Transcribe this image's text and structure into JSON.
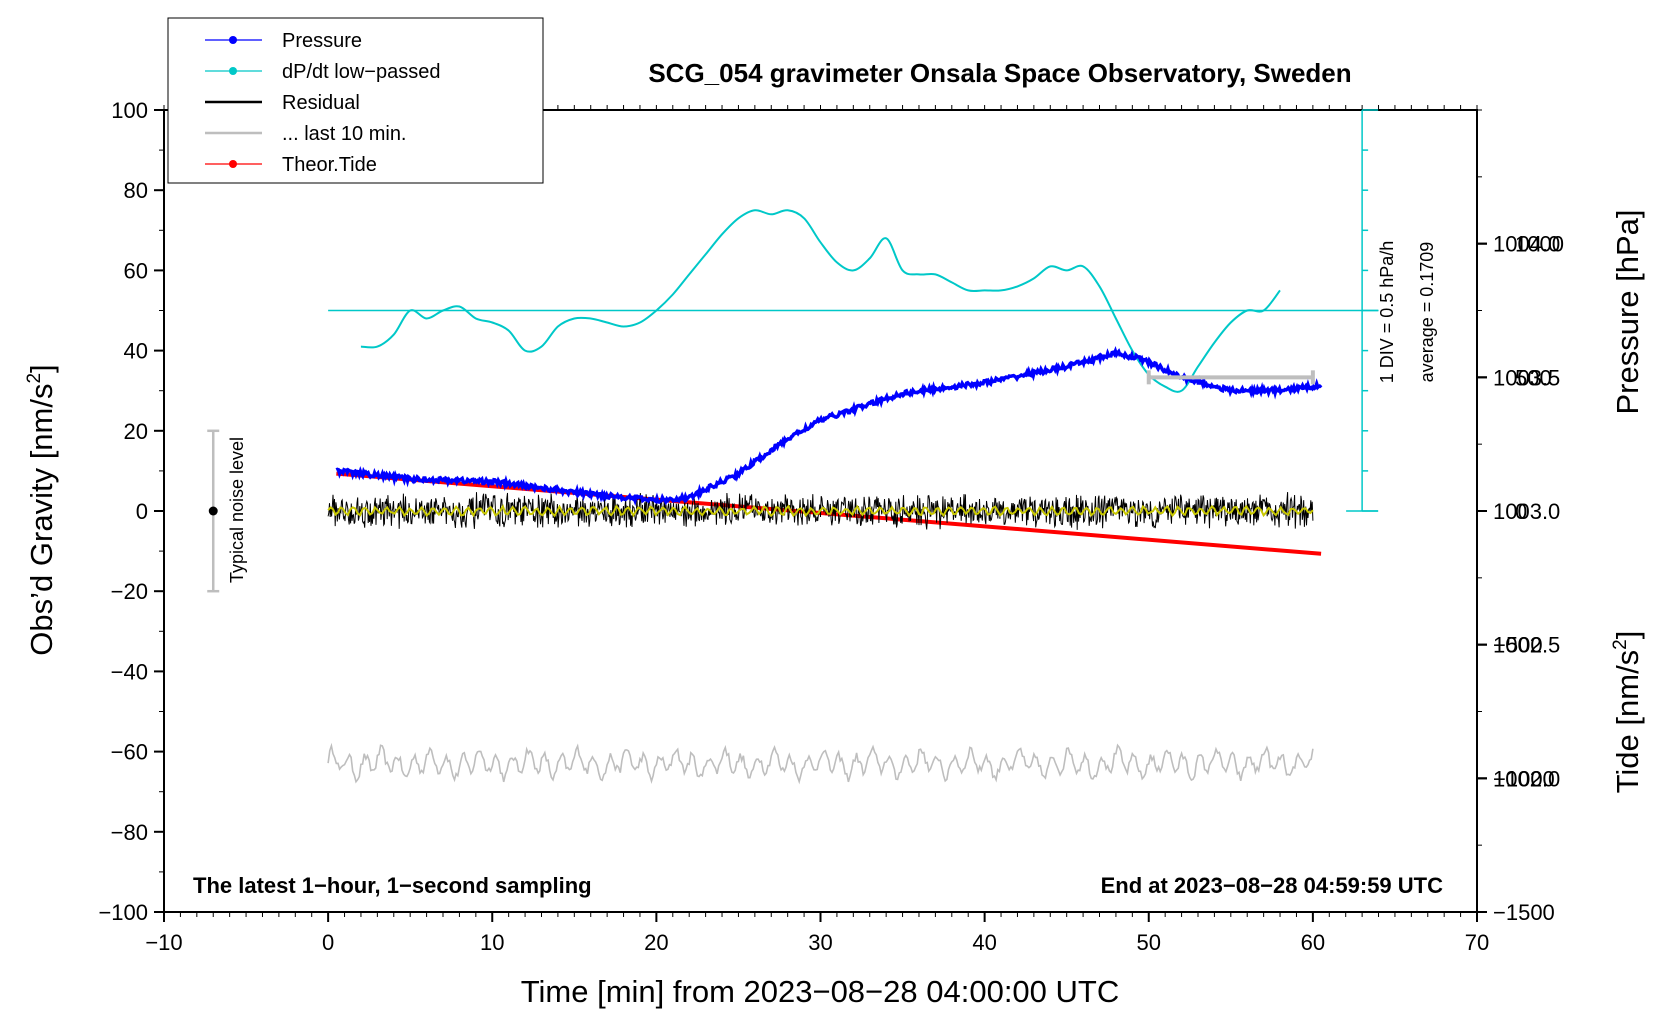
{
  "chart_data": {
    "type": "line",
    "title": "SCG_054 gravimeter Onsala Space Observatory, Sweden",
    "xlabel": "Time [min] from 2023−08−28 04:00:00 UTC",
    "ylabel_left_main": "Obs’d Gravity [nm/s",
    "ylabel_left_sup": "2",
    "ylabel_left_end": "]",
    "ylabel_right_pressure": "Pressure [hPa]",
    "ylabel_right_tide_main": "Tide [nm/s",
    "ylabel_right_tide_sup": "2",
    "ylabel_right_tide_end": "]",
    "xlim": [
      -10,
      70
    ],
    "ylim": [
      -100,
      100
    ],
    "pressure_range": [
      1001.5,
      1004.5
    ],
    "tide_range": [
      -1500,
      1500
    ],
    "x_ticks": [
      "−10",
      "0",
      "10",
      "20",
      "30",
      "40",
      "50",
      "60",
      "70"
    ],
    "y_ticks": [
      "−100",
      "−80",
      "−60",
      "−40",
      "−20",
      "0",
      "20",
      "40",
      "60",
      "80",
      "100"
    ],
    "pressure_ticks": [
      "1002.0",
      "1002.5",
      "1003.0",
      "1003.5",
      "1004.0"
    ],
    "tide_ticks": [
      "−1500",
      "−1000",
      "−500",
      "0",
      "500",
      "1000"
    ],
    "legend": [
      {
        "label": "Pressure",
        "color": "#0000ff",
        "marker": "dot"
      },
      {
        "label": "dP/dt low−passed",
        "color": "#00c8c8",
        "marker": "dot"
      },
      {
        "label": "Residual",
        "color": "#000000",
        "marker": "line"
      },
      {
        "label": "... last 10 min.",
        "color": "#bebebe",
        "marker": "line"
      },
      {
        "label": "Theor.Tide",
        "color": "#ff0000",
        "marker": "dot"
      }
    ],
    "notes": {
      "bottom_left": "The latest 1−hour, 1−second sampling",
      "bottom_right": "End at 2023−08−28 04:59:59 UTC",
      "noise_label": "Typical noise level",
      "div_label": "1 DIV = 0.5 hPa/h",
      "average_label": "average = 0.1709"
    },
    "noise_bar": {
      "x": -7,
      "y_low": -20,
      "y_high": 20,
      "y_center": 0
    },
    "scale_bar": {
      "x_start": 50,
      "x_end": 60,
      "tide_value": 500
    },
    "series": [
      {
        "name": "Pressure",
        "axis": "pressure",
        "color": "#0000ff",
        "x": [
          0.5,
          5,
          10,
          15,
          20,
          22,
          25,
          28,
          30,
          32,
          35,
          40,
          45,
          48,
          49.5,
          52,
          55,
          58,
          60.5
        ],
        "values": [
          1003.15,
          1003.12,
          1003.11,
          1003.07,
          1003.04,
          1003.05,
          1003.14,
          1003.27,
          1003.34,
          1003.38,
          1003.44,
          1003.48,
          1003.54,
          1003.59,
          1003.57,
          1003.5,
          1003.45,
          1003.45,
          1003.47
        ]
      },
      {
        "name": "dP/dt low−passed",
        "axis": "gravity",
        "color": "#00c8c8",
        "baseline": 50,
        "x": [
          2,
          3,
          4,
          5,
          6,
          7,
          8,
          9,
          10,
          11,
          12,
          13,
          14,
          15,
          16,
          17,
          18,
          19,
          20,
          21,
          22,
          23,
          24,
          25,
          26,
          27,
          28,
          29,
          30,
          31,
          32,
          33,
          34,
          35,
          36,
          37,
          38,
          39,
          40,
          41,
          42,
          43,
          44,
          45,
          46,
          47,
          48,
          49,
          50,
          51,
          52,
          53,
          54,
          55,
          56,
          57,
          58
        ],
        "values": [
          41,
          41,
          44,
          50,
          48,
          50,
          51,
          48,
          47,
          45,
          40,
          41,
          46,
          48,
          48,
          47,
          46,
          47,
          50,
          54,
          59,
          64,
          69,
          73,
          75,
          74,
          75,
          73,
          67,
          62,
          60,
          63,
          68,
          60,
          59,
          59,
          57,
          55,
          55,
          55,
          56,
          58,
          61,
          60,
          61,
          56,
          48,
          40,
          34,
          31,
          30,
          36,
          42,
          47,
          50,
          50,
          55
        ]
      },
      {
        "name": "Residual",
        "axis": "gravity",
        "color": "#000000",
        "kind": "noise",
        "x_range": [
          0,
          60
        ],
        "amplitude": 4
      },
      {
        "name": "Residual smoothed",
        "axis": "gravity",
        "color": "#c8c800",
        "kind": "noise",
        "x_range": [
          0,
          60
        ],
        "amplitude": 1.2
      },
      {
        "name": "Theor.Tide",
        "axis": "tide",
        "color": "#ff0000",
        "x": [
          0.5,
          60.5
        ],
        "values": [
          140,
          -160
        ]
      },
      {
        "name": "... last 10 min.",
        "axis": "gravity",
        "color": "#bebebe",
        "kind": "oscillation",
        "x_range": [
          0,
          60
        ],
        "center": -63,
        "amplitude": 3
      }
    ]
  }
}
